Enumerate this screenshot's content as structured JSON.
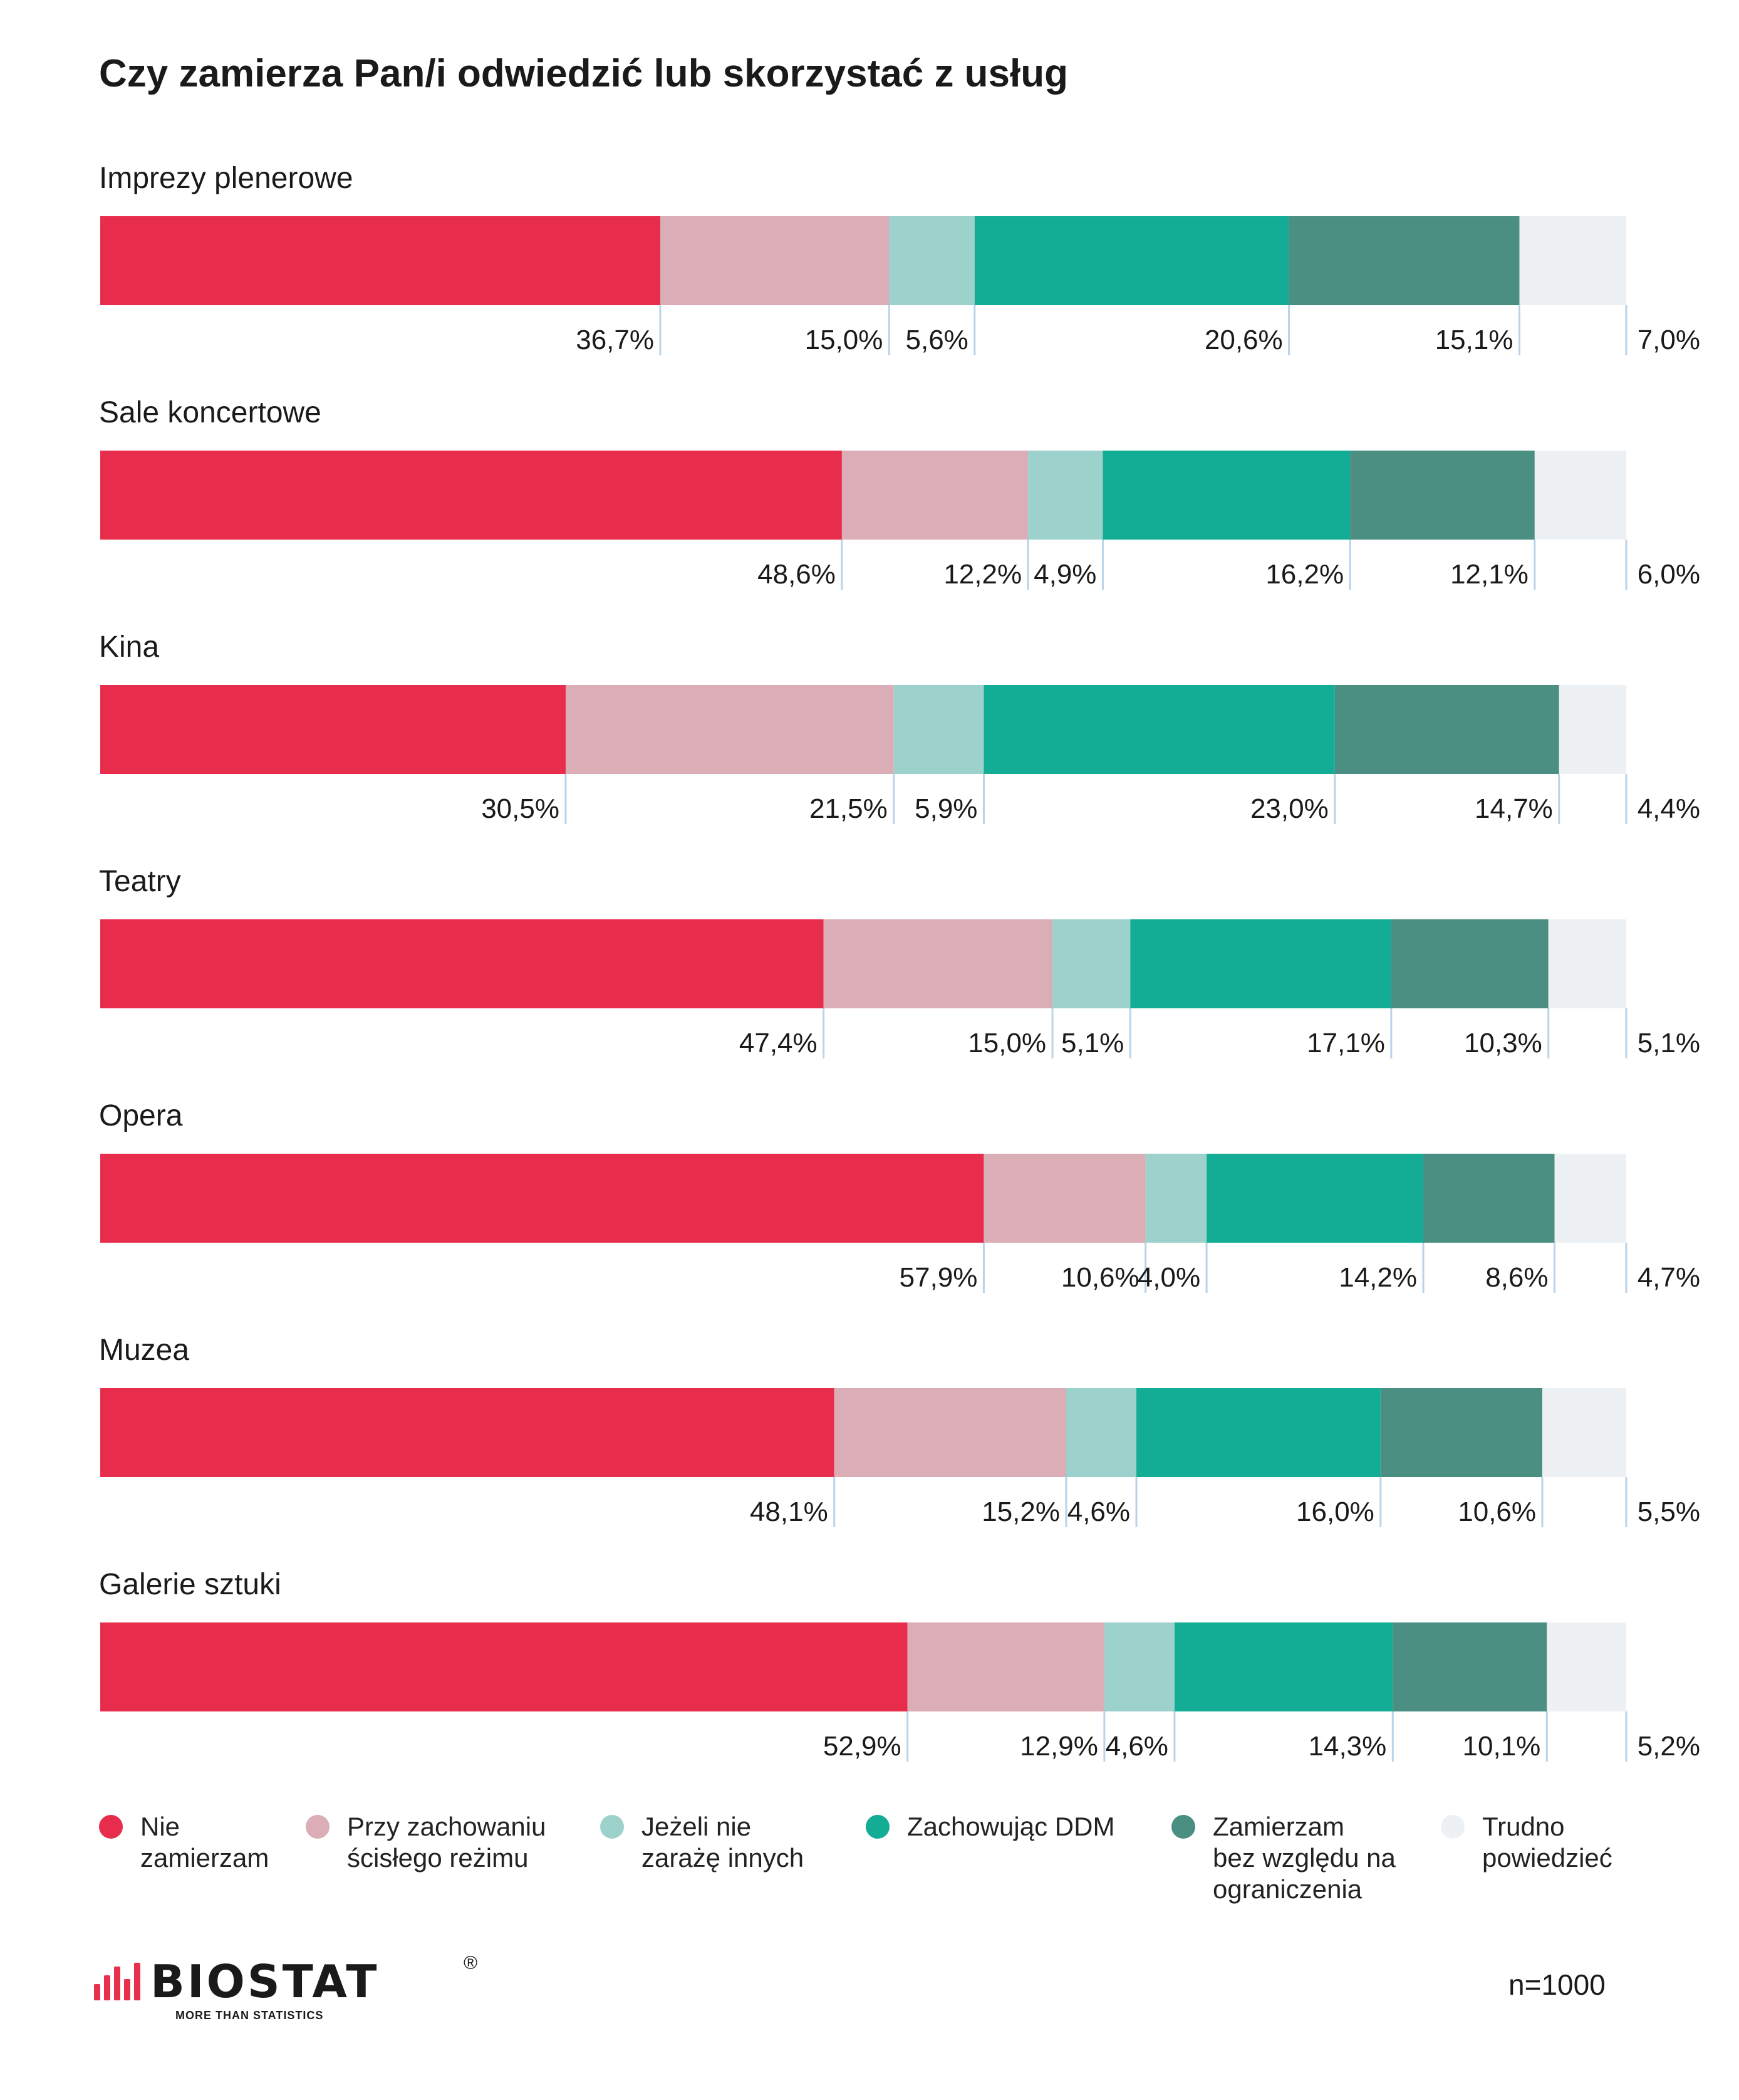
{
  "title": "Czy zamierza Pan/i odwiedzić lub skorzystać z usług",
  "sample": "n=1000",
  "brand": {
    "name": "BIOSTAT",
    "tagline": "MORE THAN STATISTICS",
    "reg": "®"
  },
  "colors": [
    "#e82d4c",
    "#dbadb6",
    "#9dd2cc",
    "#12ad94",
    "#4a8f82",
    "#edf1f4"
  ],
  "legend": [
    {
      "label": "Nie\nzamierzam"
    },
    {
      "label": "Przy zachowaniu\nścisłego reżimu"
    },
    {
      "label": "Jeżeli nie\nzarażę innych"
    },
    {
      "label": "Zachowując DDM"
    },
    {
      "label": "Zamierzam\nbez względu na\nograniczenia"
    },
    {
      "label": "Trudno\npowiedzieć"
    }
  ],
  "chart_data": {
    "type": "bar",
    "orientation": "horizontal-stacked-100",
    "categories": [
      "Imprezy plenerowe",
      "Sale koncertowe",
      "Kina",
      "Teatry",
      "Opera",
      "Muzea",
      "Galerie sztuki"
    ],
    "series": [
      {
        "name": "Nie zamierzam",
        "values": [
          36.7,
          48.6,
          30.5,
          47.4,
          57.9,
          48.1,
          52.9
        ],
        "labels": [
          "36,7%",
          "48,6%",
          "30,5%",
          "47,4%",
          "57,9%",
          "48,1%",
          "52,9%"
        ]
      },
      {
        "name": "Przy zachowaniu ścisłego reżimu",
        "values": [
          15.0,
          12.2,
          21.5,
          15.0,
          10.6,
          15.2,
          12.9
        ],
        "labels": [
          "15,0%",
          "12,2%",
          "21,5%",
          "15,0%",
          "10,6%",
          "15,2%",
          "12,9%"
        ]
      },
      {
        "name": "Jeżeli nie zarażę innych",
        "values": [
          5.6,
          4.9,
          5.9,
          5.1,
          4.0,
          4.6,
          4.6
        ],
        "labels": [
          "5,6%",
          "4,9%",
          "5,9%",
          "5,1%",
          "4,0%",
          "4,6%",
          "4,6%"
        ]
      },
      {
        "name": "Zachowując DDM",
        "values": [
          20.6,
          16.2,
          23.0,
          17.1,
          14.2,
          16.0,
          14.3
        ],
        "labels": [
          "20,6%",
          "16,2%",
          "23,0%",
          "17,1%",
          "14,2%",
          "16,0%",
          "14,3%"
        ]
      },
      {
        "name": "Zamierzam bez względu na ograniczenia",
        "values": [
          15.1,
          12.1,
          14.7,
          10.3,
          8.6,
          10.6,
          10.1
        ],
        "labels": [
          "15,1%",
          "12,1%",
          "14,7%",
          "10,3%",
          "8,6%",
          "10,6%",
          "10,1%"
        ]
      },
      {
        "name": "Trudno powiedzieć",
        "values": [
          7.0,
          6.0,
          4.4,
          5.1,
          4.7,
          5.5,
          5.2
        ],
        "labels": [
          "7,0%",
          "6,0%",
          "4,4%",
          "5,1%",
          "4,7%",
          "5,5%",
          "5,2%"
        ]
      }
    ],
    "xlim": [
      0,
      100
    ],
    "grid": false,
    "legend_position": "bottom"
  }
}
